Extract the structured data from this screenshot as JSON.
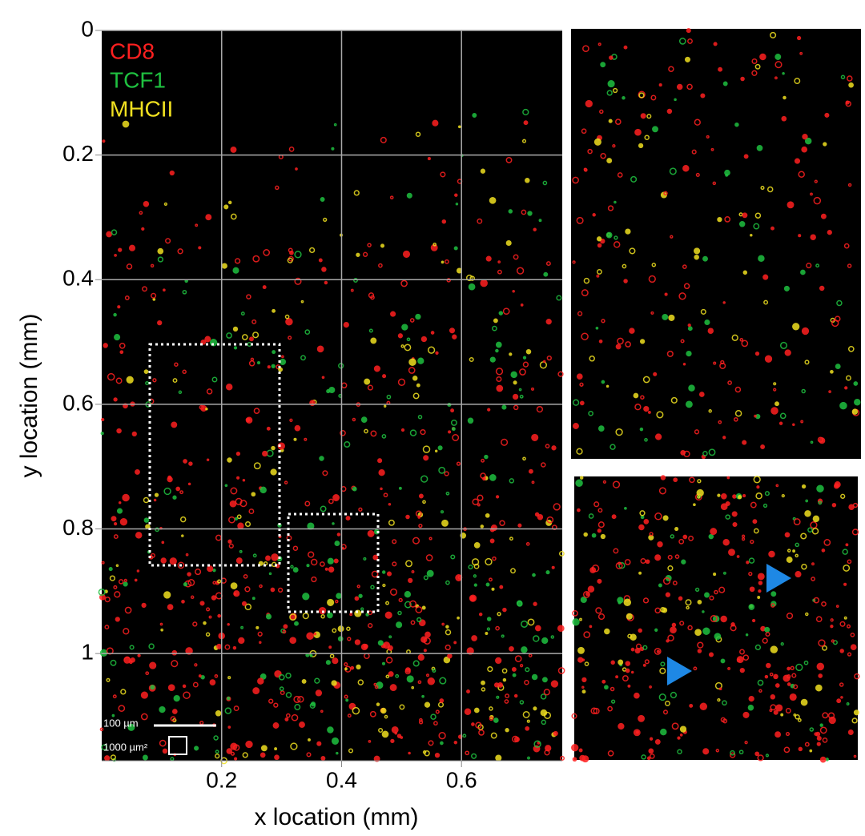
{
  "chart_data": {
    "type": "image",
    "xlabel": "x location (mm)",
    "ylabel": "y location (mm)",
    "xlim": [
      0,
      0.768
    ],
    "ylim": [
      0,
      1.172
    ],
    "y_inverted": true,
    "xticks": [
      0.2,
      0.4,
      0.6
    ],
    "yticks": [
      0,
      0.2,
      0.4,
      0.6,
      0.8,
      1
    ],
    "grid": true,
    "channels": [
      {
        "name": "CD8",
        "color": "#ff2020"
      },
      {
        "name": "TCF1",
        "color": "#1fc040"
      },
      {
        "name": "MHCII",
        "color": "#f0e020"
      }
    ],
    "scale_bar_labels": [
      "100 µm",
      "1000 µm²"
    ]
  }
}
